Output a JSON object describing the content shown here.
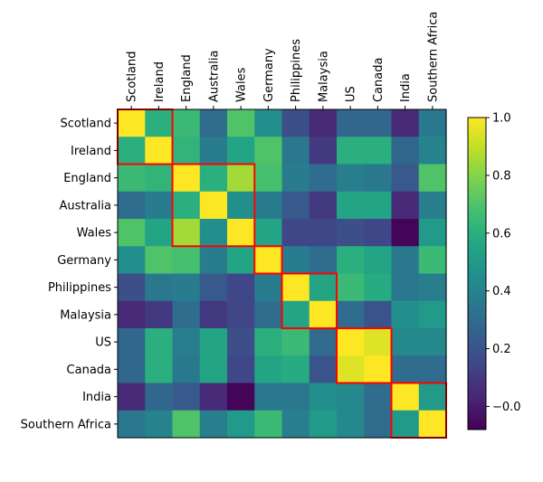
{
  "chart_data": {
    "type": "heatmap",
    "title": "",
    "row_labels": [
      "Scotland",
      "Ireland",
      "England",
      "Australia",
      "Wales",
      "Germany",
      "Philippines",
      "Malaysia",
      "US",
      "Canada",
      "India",
      "Southern Africa"
    ],
    "col_labels": [
      "Scotland",
      "Ireland",
      "England",
      "Australia",
      "Wales",
      "Germany",
      "Philippines",
      "Malaysia",
      "US",
      "Canada",
      "India",
      "Southern Africa"
    ],
    "values": [
      [
        1.0,
        0.6,
        0.65,
        0.3,
        0.7,
        0.45,
        0.18,
        0.05,
        0.28,
        0.28,
        0.05,
        0.35
      ],
      [
        0.6,
        1.0,
        0.62,
        0.37,
        0.55,
        0.7,
        0.35,
        0.1,
        0.6,
        0.6,
        0.28,
        0.4
      ],
      [
        0.65,
        0.62,
        1.0,
        0.6,
        0.85,
        0.68,
        0.37,
        0.3,
        0.38,
        0.35,
        0.22,
        0.7
      ],
      [
        0.3,
        0.37,
        0.6,
        1.0,
        0.45,
        0.37,
        0.22,
        0.1,
        0.55,
        0.55,
        0.05,
        0.38
      ],
      [
        0.7,
        0.55,
        0.85,
        0.45,
        1.0,
        0.55,
        0.15,
        0.15,
        0.18,
        0.15,
        -0.07,
        0.5
      ],
      [
        0.45,
        0.7,
        0.68,
        0.37,
        0.55,
        1.0,
        0.37,
        0.3,
        0.6,
        0.55,
        0.35,
        0.65
      ],
      [
        0.18,
        0.35,
        0.37,
        0.22,
        0.15,
        0.37,
        1.0,
        0.55,
        0.65,
        0.58,
        0.35,
        0.38
      ],
      [
        0.05,
        0.1,
        0.3,
        0.1,
        0.15,
        0.3,
        0.55,
        1.0,
        0.3,
        0.2,
        0.45,
        0.5
      ],
      [
        0.28,
        0.6,
        0.38,
        0.55,
        0.18,
        0.6,
        0.65,
        0.3,
        1.0,
        0.95,
        0.42,
        0.42
      ],
      [
        0.28,
        0.6,
        0.35,
        0.55,
        0.15,
        0.55,
        0.58,
        0.2,
        0.95,
        1.0,
        0.3,
        0.3
      ],
      [
        0.05,
        0.28,
        0.22,
        0.05,
        -0.07,
        0.35,
        0.35,
        0.45,
        0.42,
        0.3,
        1.0,
        0.5
      ],
      [
        0.35,
        0.4,
        0.7,
        0.38,
        0.5,
        0.65,
        0.38,
        0.5,
        0.42,
        0.3,
        0.5,
        1.0
      ]
    ],
    "vmin": -0.08,
    "vmax": 1.0,
    "colormap": "viridis",
    "colorbar_ticks": [
      -0.0,
      0.2,
      0.4,
      0.6,
      0.8,
      1.0
    ],
    "colorbar_tick_labels": [
      "−0.0",
      "0.2",
      "0.4",
      "0.6",
      "0.8",
      "1.0"
    ],
    "cluster_boxes": [
      {
        "start": 0,
        "end": 1
      },
      {
        "start": 2,
        "end": 4
      },
      {
        "start": 5,
        "end": 5
      },
      {
        "start": 6,
        "end": 7
      },
      {
        "start": 8,
        "end": 9
      },
      {
        "start": 10,
        "end": 11
      }
    ],
    "box_color": "#ff0000"
  }
}
